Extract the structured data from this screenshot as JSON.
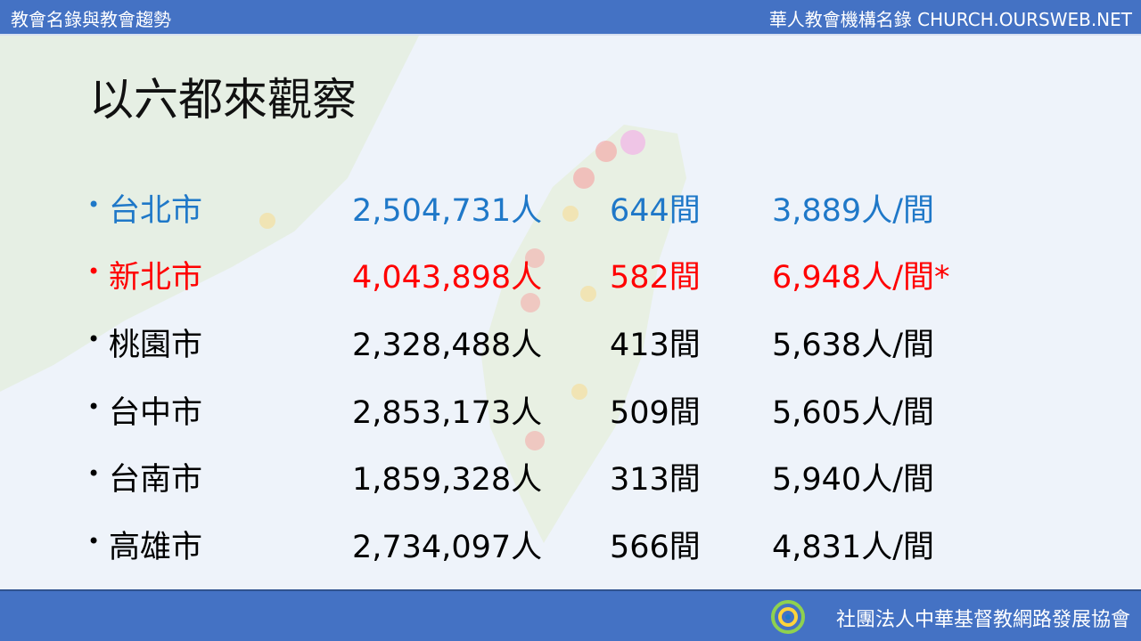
{
  "header": {
    "left": "教會名錄與教會趨勢",
    "right": "華人教會機構名錄 CHURCH.OURSWEB.NET"
  },
  "title": "以六都來觀察",
  "rows": [
    {
      "city": "台北市",
      "population": "2,504,731人",
      "churches": "644間",
      "ratio": "3,889人/間",
      "color": "#1f78c8"
    },
    {
      "city": "新北市",
      "population": "4,043,898人",
      "churches": "582間",
      "ratio": "6,948人/間*",
      "color": "#ff0000"
    },
    {
      "city": "桃園市",
      "population": "2,328,488人",
      "churches": "413間",
      "ratio": "5,638人/間",
      "color": "#000000"
    },
    {
      "city": "台中市",
      "population": "2,853,173人",
      "churches": "509間",
      "ratio": "5,605人/間",
      "color": "#000000"
    },
    {
      "city": "台南市",
      "population": "1,859,328人",
      "churches": "313間",
      "ratio": "5,940人/間",
      "color": "#000000"
    },
    {
      "city": "高雄市",
      "population": "2,734,097人",
      "churches": "566間",
      "ratio": "4,831人/間",
      "color": "#000000"
    }
  ],
  "footer": "社團法人中華基督教網路發展協會"
}
